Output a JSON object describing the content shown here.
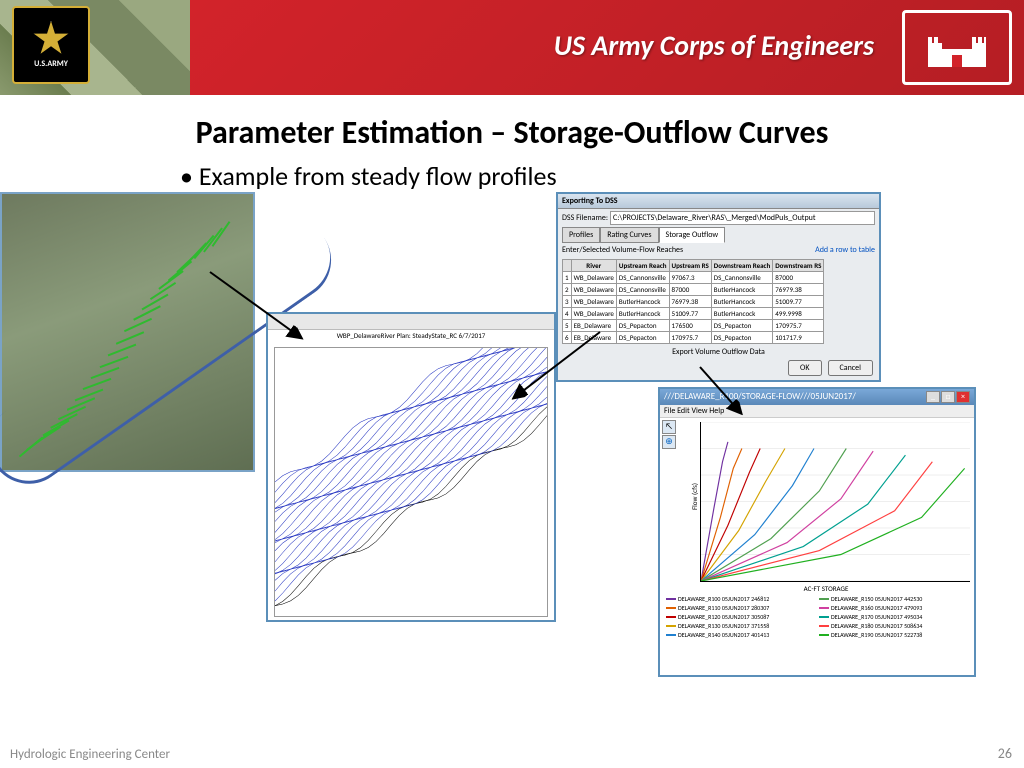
{
  "header": {
    "army_label": "U.S.ARMY",
    "usace_title": "US Army Corps of Engineers"
  },
  "slide": {
    "title": "Parameter Estimation – Storage-Outflow Curves",
    "bullet": "Example from steady flow profiles",
    "footer_left": "Hydrologic Engineering Center",
    "page_number": "26"
  },
  "dss": {
    "window_title": "Exporting To DSS",
    "filename_label": "DSS Filename:",
    "filename_value": "C:\\PROJECTS\\Delaware_River\\RAS\\_Merged\\ModPuls_Output",
    "tabs": [
      "Profiles",
      "Rating Curves",
      "Storage Outflow"
    ],
    "active_tab": 2,
    "sub_label": "Enter/Selected Volume-Flow Reaches",
    "add_row_link": "Add a row to table",
    "columns": [
      "",
      "River",
      "Upstream Reach",
      "Upstream RS",
      "Downstream Reach",
      "Downstream RS"
    ],
    "rows": [
      [
        "1",
        "WB_Delaware",
        "DS_Cannonsville",
        "97067.3",
        "DS_Cannonsville",
        "87000"
      ],
      [
        "2",
        "WB_Delaware",
        "DS_Cannonsville",
        "87000",
        "ButlerHancock",
        "76979.38"
      ],
      [
        "3",
        "WB_Delaware",
        "ButlerHancock",
        "76979.38",
        "ButlerHancock",
        "51009.77"
      ],
      [
        "4",
        "WB_Delaware",
        "ButlerHancock",
        "51009.77",
        "ButlerHancock",
        "499.9998"
      ],
      [
        "5",
        "EB_Delaware",
        "DS_Pepacton",
        "176500",
        "DS_Pepacton",
        "170975.7"
      ],
      [
        "6",
        "EB_Delaware",
        "DS_Pepacton",
        "170975.7",
        "DS_Pepacton",
        "101717.9"
      ]
    ],
    "export_label": "Export Volume Outflow Data",
    "ok_label": "OK",
    "cancel_label": "Cancel"
  },
  "profile": {
    "title_text": "WBP_DelawareRiver   Plan: SteadyState_RC   6/7/2017"
  },
  "storage_flow": {
    "window_title": "///DELAWARE_R100/STORAGE-FLOW///05JUN2017/",
    "menu": "File  Edit  View  Help",
    "ylabel": "Flow (cfs)",
    "xlabel": "AC-FT STORAGE",
    "ylim": [
      0,
      1200000
    ],
    "yticks": [
      "0",
      "200,000",
      "400,000",
      "600,000",
      "800,000",
      "1,000,000",
      "1,200,000"
    ],
    "xlim": [
      0,
      250000
    ],
    "xticks": [
      "0",
      "50,000",
      "100,000",
      "150,000",
      "200,000",
      "250,000"
    ],
    "series": [
      {
        "name": "DELAWARE_R100 05JUN2017 246812",
        "color": "#7030a0",
        "pts": [
          [
            0,
            0
          ],
          [
            12000,
            550000
          ],
          [
            20000,
            900000
          ],
          [
            25000,
            1050000
          ]
        ]
      },
      {
        "name": "DELAWARE_R110 05JUN2017 280307",
        "color": "#e06000",
        "pts": [
          [
            0,
            0
          ],
          [
            18000,
            480000
          ],
          [
            30000,
            850000
          ],
          [
            38000,
            1000000
          ]
        ]
      },
      {
        "name": "DELAWARE_R120 05JUN2017 305087",
        "color": "#c00000",
        "pts": [
          [
            0,
            0
          ],
          [
            25000,
            420000
          ],
          [
            45000,
            820000
          ],
          [
            55000,
            1000000
          ]
        ]
      },
      {
        "name": "DELAWARE_R130 05JUN2017 371558",
        "color": "#d4a300",
        "pts": [
          [
            0,
            0
          ],
          [
            35000,
            380000
          ],
          [
            60000,
            750000
          ],
          [
            78000,
            1000000
          ]
        ]
      },
      {
        "name": "DELAWARE_R140 05JUN2017 401413",
        "color": "#2080d0",
        "pts": [
          [
            0,
            0
          ],
          [
            50000,
            350000
          ],
          [
            85000,
            720000
          ],
          [
            105000,
            1000000
          ]
        ]
      },
      {
        "name": "DELAWARE_R150 05JUN2017 442530",
        "color": "#50a050",
        "pts": [
          [
            0,
            0
          ],
          [
            65000,
            320000
          ],
          [
            110000,
            680000
          ],
          [
            135000,
            1000000
          ]
        ]
      },
      {
        "name": "DELAWARE_R160 05JUN2017 479093",
        "color": "#d040a0",
        "pts": [
          [
            0,
            0
          ],
          [
            80000,
            290000
          ],
          [
            130000,
            620000
          ],
          [
            160000,
            980000
          ]
        ]
      },
      {
        "name": "DELAWARE_R170 05JUN2017 495034",
        "color": "#00a090",
        "pts": [
          [
            0,
            0
          ],
          [
            95000,
            260000
          ],
          [
            155000,
            580000
          ],
          [
            190000,
            950000
          ]
        ]
      },
      {
        "name": "DELAWARE_R180 05JUN2017 508634",
        "color": "#ff4040",
        "pts": [
          [
            0,
            0
          ],
          [
            110000,
            230000
          ],
          [
            180000,
            530000
          ],
          [
            215000,
            900000
          ]
        ]
      },
      {
        "name": "DELAWARE_R190 05JUN2017 522738",
        "color": "#20b020",
        "pts": [
          [
            0,
            0
          ],
          [
            130000,
            200000
          ],
          [
            205000,
            480000
          ],
          [
            245000,
            850000
          ]
        ]
      }
    ]
  },
  "colors": {
    "panel_border": "#5b8fb9",
    "red_band": "#d2232a",
    "gold": "#d4af37"
  }
}
